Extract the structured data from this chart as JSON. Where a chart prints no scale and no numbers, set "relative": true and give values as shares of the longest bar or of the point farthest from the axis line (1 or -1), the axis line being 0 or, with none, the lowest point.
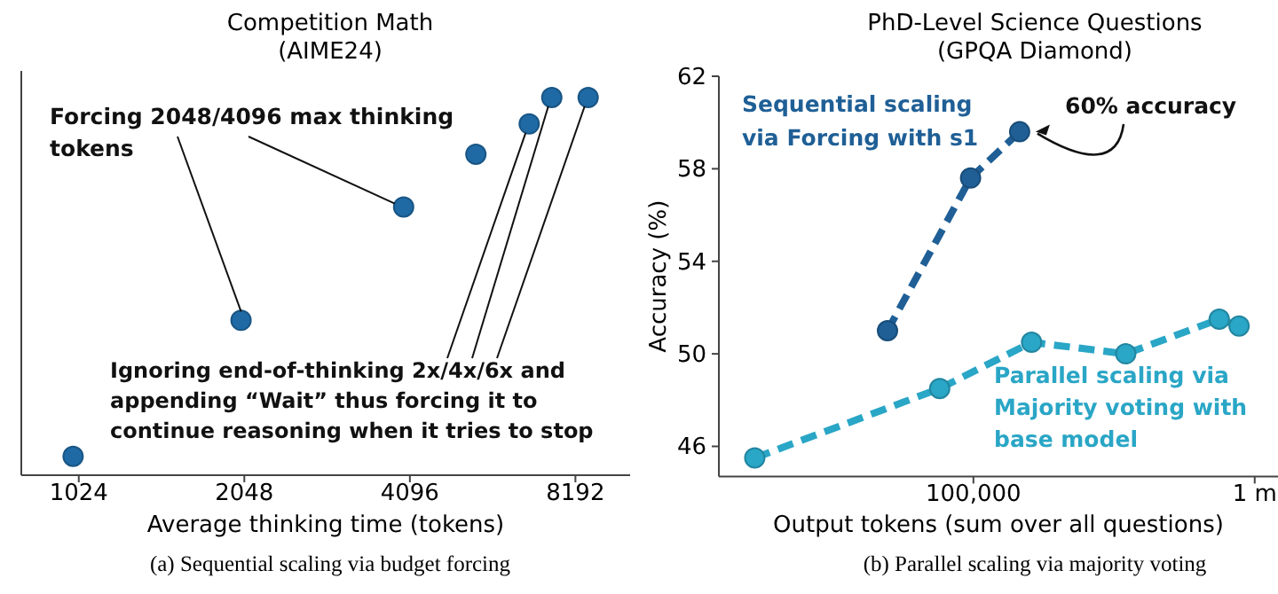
{
  "chart_data": [
    {
      "type": "scatter",
      "title": "Competition Math",
      "subtitle": "(AIME24)",
      "xlabel": "Average thinking time (tokens)",
      "log": "x",
      "relative": true,
      "marker": "circle",
      "color": "#1f6aa5",
      "x": [
        1000,
        2020,
        3990,
        5400,
        6750,
        7420,
        8640
      ],
      "values": [
        0.05,
        0.41,
        0.71,
        0.85,
        0.93,
        1,
        1
      ],
      "xlim": [
        805,
        10300
      ],
      "xticks": [
        1024,
        2048,
        4096,
        8192
      ],
      "annotations": [
        "Forcing 2048/4096 max thinking tokens",
        "Ignoring end-of-thinking 2x/4x/6x and appending “Wait” thus forcing it to continue reasoning when it tries to stop",
        "(a) Sequential scaling via budget forcing"
      ]
    },
    {
      "type": "line",
      "title": "PhD-Level Science Questions",
      "subtitle": "(GPQA Diamond)",
      "xlabel": "Output tokens (sum over all questions)",
      "ylabel": "Accuracy (%)",
      "log": "x",
      "marker": "circle",
      "line_style": "dashed",
      "xlim": [
        12450,
        1210000
      ],
      "xticks": [
        {
          "value": 100000,
          "label": "100,000"
        },
        {
          "value": 1000000,
          "label": "1 m"
        }
      ],
      "ylim": [
        44.7,
        62
      ],
      "yticks": [
        46,
        50,
        54,
        58,
        62
      ],
      "series": [
        {
          "name": "Sequential scaling via Forcing with s1",
          "color": "#1f5f96",
          "x": [
            49500,
            97700,
            146000
          ],
          "values": [
            51.0,
            57.6,
            59.6
          ]
        },
        {
          "name": "Parallel scaling via Majority voting with base model",
          "color": "#2aa6c6",
          "x": [
            16700,
            75900,
            161000,
            348000,
            748000,
            880000
          ],
          "values": [
            45.5,
            48.5,
            50.5,
            50.0,
            51.5,
            51.2
          ]
        }
      ],
      "annotations": [
        {
          "text": "60% accuracy",
          "x": 146000,
          "y": 59.6
        },
        "(b) Parallel scaling via majority voting"
      ]
    }
  ]
}
